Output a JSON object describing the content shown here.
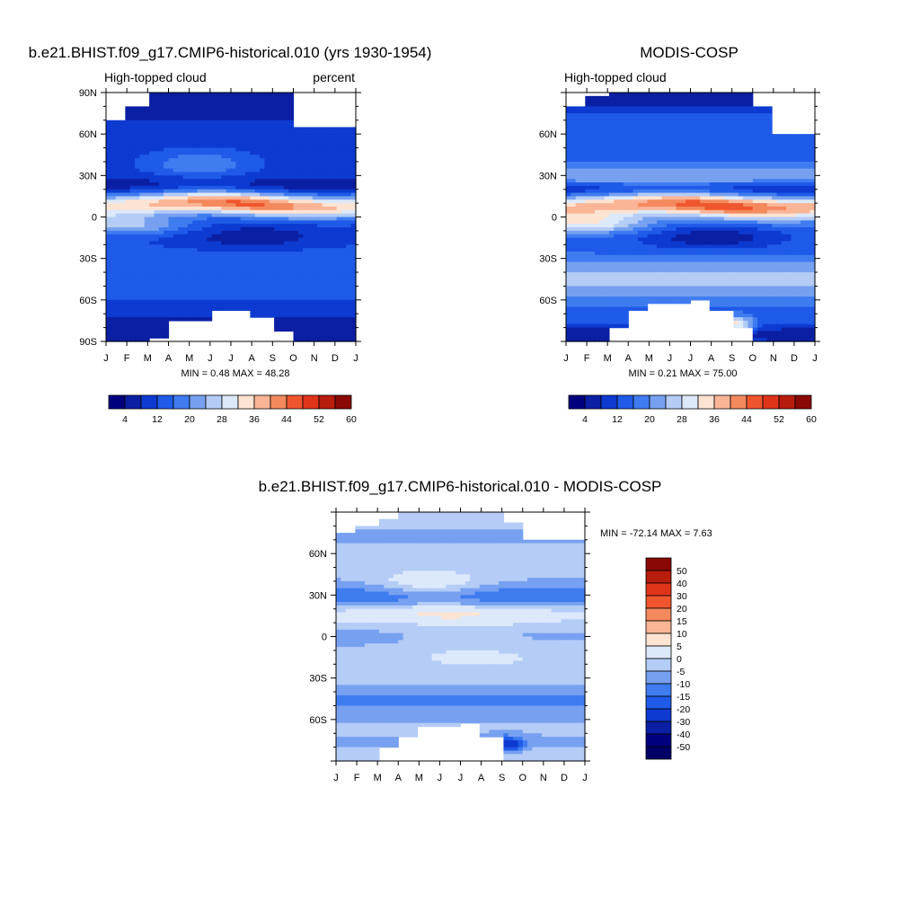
{
  "chart_data": [
    {
      "type": "heatmap",
      "title": "b.e21.BHIST.f09_g17.CMIP6-historical.010 (yrs 1930-1954)",
      "subtitle_left": "High-topped cloud",
      "subtitle_right": "percent",
      "x_ticks": [
        "J",
        "F",
        "M",
        "A",
        "M",
        "J",
        "J",
        "A",
        "S",
        "O",
        "N",
        "D",
        "J"
      ],
      "y_ticks": [
        "90N",
        "60N",
        "30N",
        "0",
        "30S",
        "60S",
        "90S"
      ],
      "ylim": [
        -90,
        90
      ],
      "stats": "MIN =   0.48 MAX =  48.28",
      "min": 0.48,
      "max": 48.28,
      "colorbar_labels": [
        "4",
        "12",
        "20",
        "28",
        "36",
        "44",
        "52",
        "60"
      ],
      "colorbar_levels": [
        0,
        4,
        8,
        12,
        16,
        20,
        24,
        28,
        32,
        36,
        40,
        44,
        48,
        52,
        56,
        60,
        64
      ]
    },
    {
      "type": "heatmap",
      "title": "MODIS-COSP",
      "subtitle_left": "High-topped cloud",
      "x_ticks": [
        "J",
        "F",
        "M",
        "A",
        "M",
        "J",
        "J",
        "A",
        "S",
        "O",
        "N",
        "D",
        "J"
      ],
      "y_ticks": [
        "60N",
        "30N",
        "0",
        "30S",
        "60S"
      ],
      "ylim": [
        -90,
        90
      ],
      "stats": "MIN =   0.21 MAX =  75.00",
      "min": 0.21,
      "max": 75.0,
      "colorbar_labels": [
        "4",
        "12",
        "20",
        "28",
        "36",
        "44",
        "52",
        "60"
      ],
      "colorbar_levels": [
        0,
        4,
        8,
        12,
        16,
        20,
        24,
        28,
        32,
        36,
        40,
        44,
        48,
        52,
        56,
        60,
        64
      ]
    },
    {
      "type": "heatmap",
      "title": "b.e21.BHIST.f09_g17.CMIP6-historical.010 - MODIS-COSP",
      "x_ticks": [
        "J",
        "F",
        "M",
        "A",
        "M",
        "J",
        "J",
        "A",
        "S",
        "O",
        "N",
        "D",
        "J"
      ],
      "y_ticks": [
        "60N",
        "30N",
        "0",
        "30S",
        "60S"
      ],
      "ylim": [
        -90,
        90
      ],
      "stats": "MIN = -72.14 MAX =   7.63",
      "min": -72.14,
      "max": 7.63,
      "colorbar_labels": [
        "50",
        "40",
        "30",
        "20",
        "15",
        "10",
        "5",
        "0",
        "-5",
        "-10",
        "-15",
        "-20",
        "-30",
        "-40",
        "-50"
      ]
    }
  ],
  "colors": {
    "abs_palette": [
      "#00007f",
      "#0a1fa3",
      "#0d3ad0",
      "#1f5ae8",
      "#3f7cf0",
      "#77a1f0",
      "#b4ccf6",
      "#dce9fb",
      "#fde3d2",
      "#f9b596",
      "#f4895d",
      "#f0562e",
      "#e0341a",
      "#b81c0c",
      "#8a0905"
    ],
    "diff_palette": [
      "#8a0905",
      "#b81c0c",
      "#e0341a",
      "#f0562e",
      "#f4895d",
      "#f9b596",
      "#fde3d2",
      "#dce9fb",
      "#b4ccf6",
      "#77a1f0",
      "#3f7cf0",
      "#1f5ae8",
      "#0d3ad0",
      "#0a1fa3",
      "#00007f",
      "#000066"
    ],
    "background": "#ffffff",
    "axis": "#000000"
  }
}
